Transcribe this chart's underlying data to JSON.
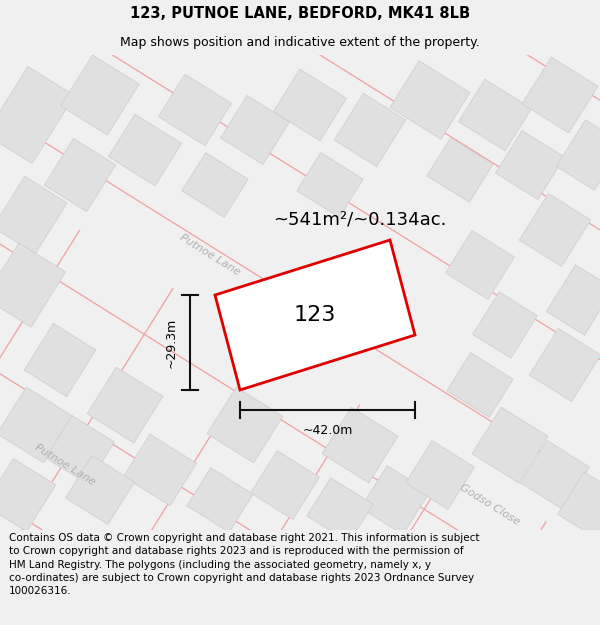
{
  "title": "123, PUTNOE LANE, BEDFORD, MK41 8LB",
  "subtitle": "Map shows position and indicative extent of the property.",
  "footer": "Contains OS data © Crown copyright and database right 2021. This information is subject\nto Crown copyright and database rights 2023 and is reproduced with the permission of\nHM Land Registry. The polygons (including the associated geometry, namely x, y\nco-ordinates) are subject to Crown copyright and database rights 2023 Ordnance Survey\n100026316.",
  "area_label": "~541m²/~0.134ac.",
  "width_label": "~42.0m",
  "height_label": "~29.3m",
  "property_number": "123",
  "bg_color": "#f0f0f0",
  "map_bg": "#ffffff",
  "block_fill": "#e0e0e0",
  "block_edge": "#cccccc",
  "pink_line": "#f0a0a0",
  "red_outline": "#e00000",
  "street_label_color": "#b0b0b0",
  "dim_line_color": "#111111",
  "title_fontsize": 10.5,
  "subtitle_fontsize": 9,
  "footer_fontsize": 7.5,
  "area_label_fontsize": 13,
  "property_label_fontsize": 16,
  "dim_label_fontsize": 9,
  "street_label_fontsize": 8
}
